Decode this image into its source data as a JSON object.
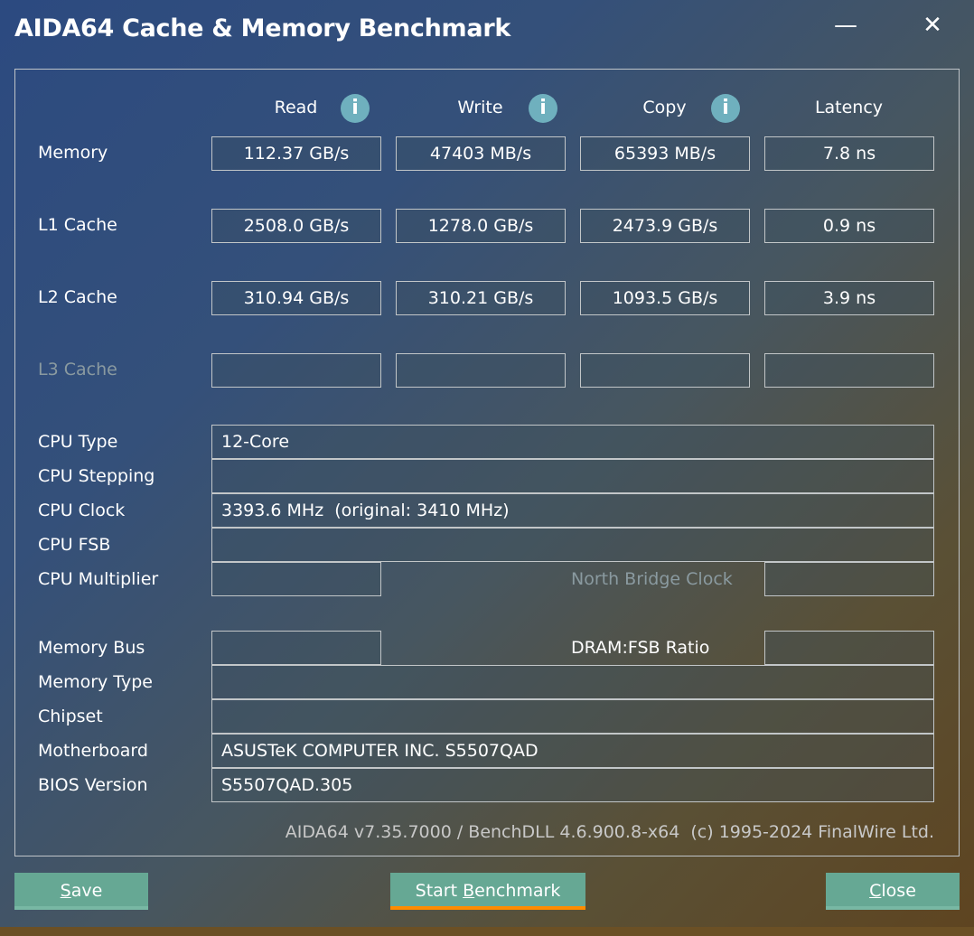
{
  "window": {
    "title": "AIDA64 Cache & Memory Benchmark",
    "minimize_icon": "minimize-icon",
    "close_icon": "close-icon"
  },
  "columns": [
    "Read",
    "Write",
    "Copy",
    "Latency"
  ],
  "rows": [
    {
      "label": "Memory",
      "values": [
        "112.37 GB/s",
        "47403 MB/s",
        "65393 MB/s",
        "7.8 ns"
      ]
    },
    {
      "label": "L1 Cache",
      "values": [
        "2508.0 GB/s",
        "1278.0 GB/s",
        "2473.9 GB/s",
        "0.9 ns"
      ]
    },
    {
      "label": "L2 Cache",
      "values": [
        "310.94 GB/s",
        "310.21 GB/s",
        "1093.5 GB/s",
        "3.9 ns"
      ]
    },
    {
      "label": "L3 Cache",
      "values": [
        "",
        "",
        "",
        ""
      ]
    }
  ],
  "info": {
    "cpu_type": {
      "label": "CPU Type",
      "value": "12-Core"
    },
    "cpu_stepping": {
      "label": "CPU Stepping",
      "value": ""
    },
    "cpu_clock": {
      "label": "CPU Clock",
      "value": "3393.6 MHz  (original: 3410 MHz)"
    },
    "cpu_fsb": {
      "label": "CPU FSB",
      "value": ""
    },
    "cpu_multiplier": {
      "label": "CPU Multiplier",
      "value": ""
    },
    "north_bridge_clock": {
      "label": "North Bridge Clock",
      "value": ""
    },
    "memory_bus": {
      "label": "Memory Bus",
      "value": ""
    },
    "dram_fsb_ratio": {
      "label": "DRAM:FSB Ratio",
      "value": ""
    },
    "memory_type": {
      "label": "Memory Type",
      "value": ""
    },
    "chipset": {
      "label": "Chipset",
      "value": ""
    },
    "motherboard": {
      "label": "Motherboard",
      "value": "ASUSTeK COMPUTER INC. S5507QAD"
    },
    "bios_version": {
      "label": "BIOS Version",
      "value": "S5507QAD.305"
    }
  },
  "footer": "AIDA64 v7.35.7000 / BenchDLL 4.6.900.8-x64  (c) 1995-2024 FinalWire Ltd.",
  "buttons": {
    "save_key": "S",
    "save_rest": "ave",
    "start_pre": "Start ",
    "start_key": "B",
    "start_rest": "enchmark",
    "close_key": "C",
    "close_rest": "lose"
  },
  "colors": {
    "button": "#66a894",
    "focus_underline": "#ff8c00",
    "info_icon": "#6fb0be"
  }
}
